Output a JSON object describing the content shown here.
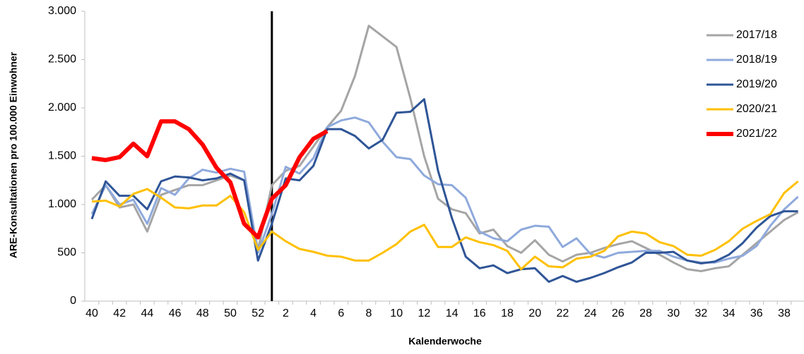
{
  "chart_data": {
    "type": "line",
    "y_label": "ARE-Konsultationen pro 100.000 Einwohner",
    "x_label": "Kalenderwoche",
    "categories": [
      "40",
      null,
      "42",
      null,
      "44",
      null,
      "46",
      null,
      "48",
      null,
      "50",
      null,
      "52",
      null,
      "2",
      null,
      "4",
      null,
      "6",
      null,
      "8",
      null,
      "10",
      null,
      "12",
      null,
      "14",
      null,
      "16",
      null,
      "18",
      null,
      "20",
      null,
      "22",
      null,
      "24",
      null,
      "26",
      null,
      "28",
      null,
      "30",
      null,
      "32",
      null,
      "34",
      null,
      "36",
      null,
      "38",
      null
    ],
    "ylim": [
      0,
      3000
    ],
    "yticks": [
      0,
      500,
      {
        "value": 1000,
        "label": "1.000"
      },
      {
        "value": 1500,
        "label": "1.500"
      },
      {
        "value": 2000,
        "label": "2.000"
      },
      {
        "value": 2500,
        "label": "2.500"
      },
      {
        "value": 3000,
        "label": "3.000"
      }
    ],
    "grid": false,
    "legend": "right",
    "series": [
      {
        "name": "2017/18",
        "color": "#a5a5a5",
        "width": 3,
        "values": [
          1050,
          1200,
          970,
          1000,
          720,
          1100,
          1150,
          1200,
          1200,
          1250,
          1300,
          1250,
          530,
          1200,
          1350,
          1400,
          1600,
          1800,
          1970,
          2330,
          2850,
          2740,
          2630,
          2100,
          1500,
          1060,
          950,
          910,
          700,
          740,
          570,
          500,
          630,
          480,
          410,
          480,
          500,
          550,
          590,
          620,
          550,
          480,
          400,
          330,
          310,
          340,
          360,
          480,
          600,
          720,
          840,
          920
        ]
      },
      {
        "name": "2018/19",
        "color": "#8faadc",
        "width": 3,
        "values": [
          900,
          1200,
          1000,
          1050,
          800,
          1170,
          1100,
          1270,
          1360,
          1330,
          1370,
          1340,
          500,
          900,
          1390,
          1320,
          1480,
          1800,
          1870,
          1900,
          1850,
          1650,
          1490,
          1470,
          1300,
          1210,
          1200,
          1070,
          720,
          650,
          620,
          740,
          780,
          770,
          560,
          650,
          490,
          450,
          500,
          510,
          520,
          520,
          460,
          420,
          400,
          400,
          440,
          470,
          570,
          780,
          950,
          1080
        ]
      },
      {
        "name": "2019/20",
        "color": "#2f5597",
        "width": 3,
        "values": [
          850,
          1240,
          1090,
          1090,
          950,
          1240,
          1290,
          1280,
          1250,
          1270,
          1320,
          1250,
          420,
          800,
          1270,
          1250,
          1400,
          1780,
          1780,
          1710,
          1580,
          1670,
          1950,
          1960,
          2090,
          1350,
          860,
          460,
          340,
          370,
          290,
          330,
          340,
          200,
          260,
          200,
          240,
          290,
          350,
          400,
          500,
          500,
          510,
          420,
          390,
          410,
          480,
          600,
          760,
          880,
          930,
          930
        ]
      },
      {
        "name": "2020/21",
        "color": "#ffc000",
        "width": 3,
        "values": [
          1030,
          1040,
          980,
          1110,
          1160,
          1070,
          970,
          960,
          990,
          990,
          1090,
          920,
          530,
          720,
          620,
          540,
          510,
          470,
          460,
          420,
          420,
          500,
          590,
          720,
          790,
          560,
          560,
          660,
          610,
          580,
          520,
          330,
          460,
          360,
          350,
          440,
          460,
          520,
          670,
          720,
          700,
          610,
          570,
          480,
          470,
          530,
          620,
          750,
          830,
          900,
          1120,
          1240
        ]
      },
      {
        "name": "2021/22",
        "color": "#ff0000",
        "width": 6,
        "values": [
          1480,
          1460,
          1490,
          1630,
          1500,
          1860,
          1860,
          1780,
          1620,
          1380,
          1230,
          800,
          660,
          1060,
          1200,
          1490,
          1680,
          1760,
          null,
          null,
          null,
          null,
          null,
          null,
          null,
          null,
          null,
          null,
          null,
          null,
          null,
          null,
          null,
          null,
          null,
          null,
          null,
          null,
          null,
          null,
          null,
          null,
          null,
          null,
          null,
          null,
          null,
          null,
          null,
          null,
          null,
          null
        ]
      }
    ]
  }
}
